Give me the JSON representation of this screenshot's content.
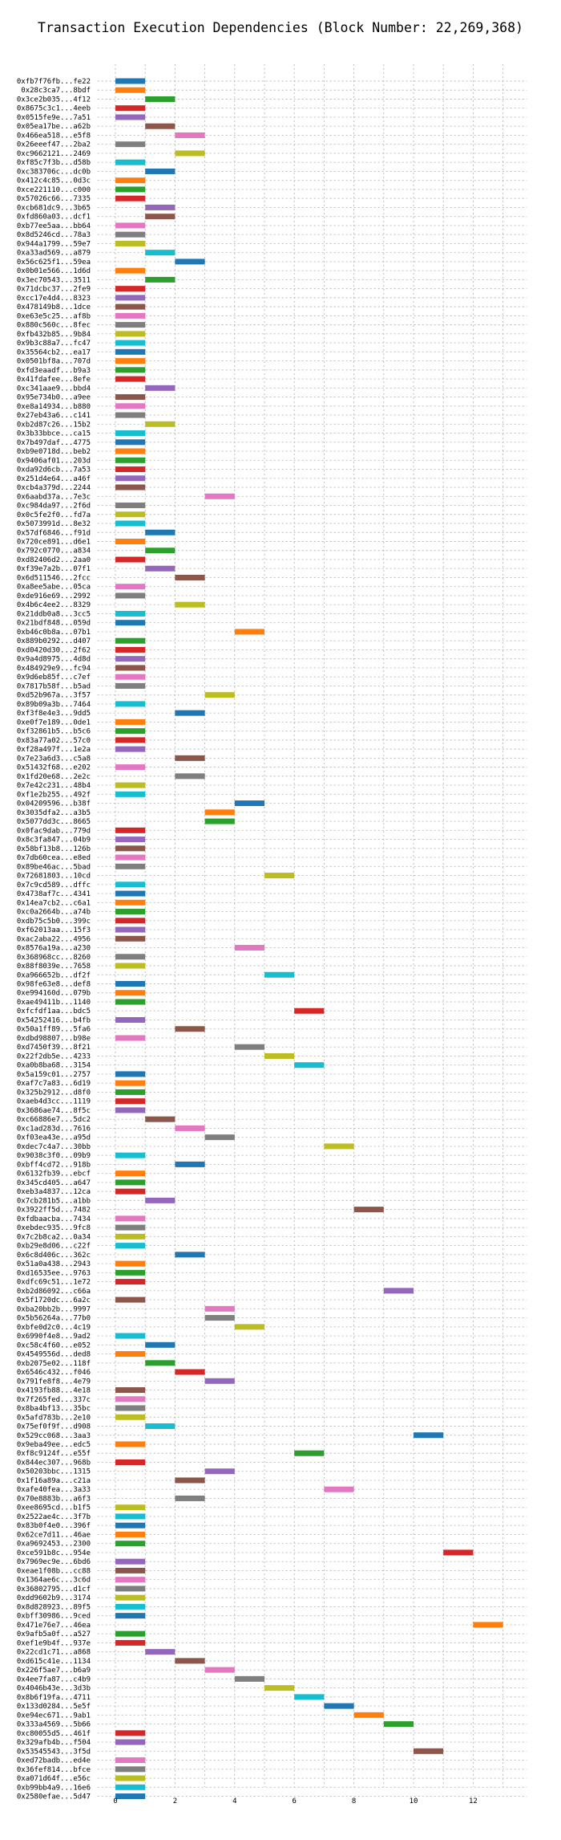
{
  "chart_data": {
    "type": "bar",
    "orientation": "horizontal-gantt",
    "title": "Transaction Execution Dependencies (Block Number: 22,269,368)",
    "xlabel": "",
    "ylabel": "",
    "xlim": [
      -0.6,
      13.8
    ],
    "xticks": [
      "0",
      "2",
      "4",
      "6",
      "8",
      "10",
      "12"
    ],
    "grid": true,
    "bar_length": 1,
    "colors": [
      "#1f77b4",
      "#ff7f0e",
      "#2ca02c",
      "#d62728",
      "#9467bd",
      "#8c564b",
      "#e377c2",
      "#7f7f7f",
      "#bcbd22",
      "#17becf"
    ],
    "transactions": [
      {
        "hash": "0xfb7f76fb...fe22",
        "start": 0,
        "color": "#1f77b4"
      },
      {
        "hash": "0x28c3ca7...8bdf",
        "start": 0,
        "color": "#ff7f0e"
      },
      {
        "hash": "0x3ce2b035...4f12",
        "start": 1,
        "color": "#2ca02c"
      },
      {
        "hash": "0x8675c3c1...4eeb",
        "start": 0,
        "color": "#d62728"
      },
      {
        "hash": "0x0515fe9e...7a51",
        "start": 0,
        "color": "#9467bd"
      },
      {
        "hash": "0x05ea17be...a62b",
        "start": 1,
        "color": "#8c564b"
      },
      {
        "hash": "0x466ea518...e5f8",
        "start": 2,
        "color": "#e377c2"
      },
      {
        "hash": "0x26eeef47...2ba2",
        "start": 0,
        "color": "#7f7f7f"
      },
      {
        "hash": "0xc9662121...2469",
        "start": 2,
        "color": "#bcbd22"
      },
      {
        "hash": "0xf85c7f3b...d58b",
        "start": 0,
        "color": "#17becf"
      },
      {
        "hash": "0xc383706c...dc0b",
        "start": 1,
        "color": "#1f77b4"
      },
      {
        "hash": "0x412c4c85...0d3c",
        "start": 0,
        "color": "#ff7f0e"
      },
      {
        "hash": "0xce221110...c000",
        "start": 0,
        "color": "#2ca02c"
      },
      {
        "hash": "0x57026c66...7335",
        "start": 0,
        "color": "#d62728"
      },
      {
        "hash": "0xcb681dc9...3b65",
        "start": 1,
        "color": "#9467bd"
      },
      {
        "hash": "0xfd860a03...dcf1",
        "start": 1,
        "color": "#8c564b"
      },
      {
        "hash": "0xb77ee5aa...bb64",
        "start": 0,
        "color": "#e377c2"
      },
      {
        "hash": "0x8d5246cd...78a3",
        "start": 0,
        "color": "#7f7f7f"
      },
      {
        "hash": "0x944a1799...59e7",
        "start": 0,
        "color": "#bcbd22"
      },
      {
        "hash": "0xa33ad569...a879",
        "start": 1,
        "color": "#17becf"
      },
      {
        "hash": "0x56c625f1...59ea",
        "start": 2,
        "color": "#1f77b4"
      },
      {
        "hash": "0x0b01e566...1d6d",
        "start": 0,
        "color": "#ff7f0e"
      },
      {
        "hash": "0x3ec70543...3511",
        "start": 1,
        "color": "#2ca02c"
      },
      {
        "hash": "0x71dcbc37...2fe9",
        "start": 0,
        "color": "#d62728"
      },
      {
        "hash": "0xcc17e4d4...8323",
        "start": 0,
        "color": "#9467bd"
      },
      {
        "hash": "0x478149b8...1dce",
        "start": 0,
        "color": "#8c564b"
      },
      {
        "hash": "0xe63e5c25...af8b",
        "start": 0,
        "color": "#e377c2"
      },
      {
        "hash": "0x880c560c...8fec",
        "start": 0,
        "color": "#7f7f7f"
      },
      {
        "hash": "0xfb432b85...9b84",
        "start": 0,
        "color": "#bcbd22"
      },
      {
        "hash": "0x9b3c88a7...fc47",
        "start": 0,
        "color": "#17becf"
      },
      {
        "hash": "0x35564cb2...ea17",
        "start": 0,
        "color": "#1f77b4"
      },
      {
        "hash": "0x0501bf8a...707d",
        "start": 0,
        "color": "#ff7f0e"
      },
      {
        "hash": "0xfd3eaadf...b9a3",
        "start": 0,
        "color": "#2ca02c"
      },
      {
        "hash": "0x41fdafee...8efe",
        "start": 0,
        "color": "#d62728"
      },
      {
        "hash": "0xc341aae9...bbd4",
        "start": 1,
        "color": "#9467bd"
      },
      {
        "hash": "0x95e734b0...a9ee",
        "start": 0,
        "color": "#8c564b"
      },
      {
        "hash": "0xe8a14934...b880",
        "start": 0,
        "color": "#e377c2"
      },
      {
        "hash": "0x27eb43a6...c141",
        "start": 0,
        "color": "#7f7f7f"
      },
      {
        "hash": "0xb2d87c26...15b2",
        "start": 1,
        "color": "#bcbd22"
      },
      {
        "hash": "0x3b33bbce...ca15",
        "start": 0,
        "color": "#17becf"
      },
      {
        "hash": "0x7b497daf...4775",
        "start": 0,
        "color": "#1f77b4"
      },
      {
        "hash": "0xb9e0718d...beb2",
        "start": 0,
        "color": "#ff7f0e"
      },
      {
        "hash": "0x9406af01...203d",
        "start": 0,
        "color": "#2ca02c"
      },
      {
        "hash": "0xda92d6cb...7a53",
        "start": 0,
        "color": "#d62728"
      },
      {
        "hash": "0x251d4e64...a46f",
        "start": 0,
        "color": "#9467bd"
      },
      {
        "hash": "0xcb4a379d...2244",
        "start": 0,
        "color": "#8c564b"
      },
      {
        "hash": "0x6aabd37a...7e3c",
        "start": 3,
        "color": "#e377c2"
      },
      {
        "hash": "0xc984da97...2f6d",
        "start": 0,
        "color": "#7f7f7f"
      },
      {
        "hash": "0x0c5fe2f0...fd7a",
        "start": 0,
        "color": "#bcbd22"
      },
      {
        "hash": "0x5073991d...8e32",
        "start": 0,
        "color": "#17becf"
      },
      {
        "hash": "0x57df6846...f91d",
        "start": 1,
        "color": "#1f77b4"
      },
      {
        "hash": "0x720ce891...d6e1",
        "start": 0,
        "color": "#ff7f0e"
      },
      {
        "hash": "0x792c0770...a834",
        "start": 1,
        "color": "#2ca02c"
      },
      {
        "hash": "0xd82406d2...2aa0",
        "start": 0,
        "color": "#d62728"
      },
      {
        "hash": "0xf39e7a2b...07f1",
        "start": 1,
        "color": "#9467bd"
      },
      {
        "hash": "0x6d511546...2fcc",
        "start": 2,
        "color": "#8c564b"
      },
      {
        "hash": "0xa8ee5abe...05ca",
        "start": 0,
        "color": "#e377c2"
      },
      {
        "hash": "0xde916e69...2992",
        "start": 0,
        "color": "#7f7f7f"
      },
      {
        "hash": "0x4b6c4ee2...8329",
        "start": 2,
        "color": "#bcbd22"
      },
      {
        "hash": "0x21ddb0a8...3cc5",
        "start": 0,
        "color": "#17becf"
      },
      {
        "hash": "0x21bdf848...059d",
        "start": 0,
        "color": "#1f77b4"
      },
      {
        "hash": "0xb46c0b8a...07b1",
        "start": 4,
        "color": "#ff7f0e"
      },
      {
        "hash": "0x889b0292...d407",
        "start": 0,
        "color": "#2ca02c"
      },
      {
        "hash": "0xd0420d30...2f62",
        "start": 0,
        "color": "#d62728"
      },
      {
        "hash": "0x9a4d8975...4d8d",
        "start": 0,
        "color": "#9467bd"
      },
      {
        "hash": "0x484929e9...fc94",
        "start": 0,
        "color": "#8c564b"
      },
      {
        "hash": "0x9d6eb85f...c7ef",
        "start": 0,
        "color": "#e377c2"
      },
      {
        "hash": "0x7817b58f...b5ad",
        "start": 0,
        "color": "#7f7f7f"
      },
      {
        "hash": "0xd52b967a...3f57",
        "start": 3,
        "color": "#bcbd22"
      },
      {
        "hash": "0x89b09a3b...7464",
        "start": 0,
        "color": "#17becf"
      },
      {
        "hash": "0xf3f8e4e3...9dd5",
        "start": 2,
        "color": "#1f77b4"
      },
      {
        "hash": "0xe0f7e189...0de1",
        "start": 0,
        "color": "#ff7f0e"
      },
      {
        "hash": "0xf32861b5...b5c6",
        "start": 0,
        "color": "#2ca02c"
      },
      {
        "hash": "0x83a77a02...57c0",
        "start": 0,
        "color": "#d62728"
      },
      {
        "hash": "0xf28a497f...1e2a",
        "start": 0,
        "color": "#9467bd"
      },
      {
        "hash": "0x7e23a6d3...c5a8",
        "start": 2,
        "color": "#8c564b"
      },
      {
        "hash": "0x51432f68...e202",
        "start": 0,
        "color": "#e377c2"
      },
      {
        "hash": "0x1fd20e68...2e2c",
        "start": 2,
        "color": "#7f7f7f"
      },
      {
        "hash": "0x7e42c231...48b4",
        "start": 0,
        "color": "#bcbd22"
      },
      {
        "hash": "0xf1e2b255...492f",
        "start": 0,
        "color": "#17becf"
      },
      {
        "hash": "0x04209596...b38f",
        "start": 4,
        "color": "#1f77b4"
      },
      {
        "hash": "0x3035dfa2...a3b5",
        "start": 3,
        "color": "#ff7f0e"
      },
      {
        "hash": "0x5077dd3c...8665",
        "start": 3,
        "color": "#2ca02c"
      },
      {
        "hash": "0x0fac9dab...779d",
        "start": 0,
        "color": "#d62728"
      },
      {
        "hash": "0x8c3fa847...04b9",
        "start": 0,
        "color": "#9467bd"
      },
      {
        "hash": "0x58bf13b8...126b",
        "start": 0,
        "color": "#8c564b"
      },
      {
        "hash": "0x7db60cea...e8ed",
        "start": 0,
        "color": "#e377c2"
      },
      {
        "hash": "0x89be46ac...5bad",
        "start": 0,
        "color": "#7f7f7f"
      },
      {
        "hash": "0x72681803...10cd",
        "start": 5,
        "color": "#bcbd22"
      },
      {
        "hash": "0x7c9cd589...dffc",
        "start": 0,
        "color": "#17becf"
      },
      {
        "hash": "0x4738af7c...4341",
        "start": 0,
        "color": "#1f77b4"
      },
      {
        "hash": "0x14ea7cb2...c6a1",
        "start": 0,
        "color": "#ff7f0e"
      },
      {
        "hash": "0xc0a2664b...a74b",
        "start": 0,
        "color": "#2ca02c"
      },
      {
        "hash": "0xdb75c5b0...399c",
        "start": 0,
        "color": "#d62728"
      },
      {
        "hash": "0xf62013aa...15f3",
        "start": 0,
        "color": "#9467bd"
      },
      {
        "hash": "0xac2aba22...4956",
        "start": 0,
        "color": "#8c564b"
      },
      {
        "hash": "0x8576a19a...a230",
        "start": 4,
        "color": "#e377c2"
      },
      {
        "hash": "0x368968cc...8260",
        "start": 0,
        "color": "#7f7f7f"
      },
      {
        "hash": "0x88f8039e...7658",
        "start": 0,
        "color": "#bcbd22"
      },
      {
        "hash": "0xa966652b...df2f",
        "start": 5,
        "color": "#17becf"
      },
      {
        "hash": "0x98fe63e8...def8",
        "start": 0,
        "color": "#1f77b4"
      },
      {
        "hash": "0xe994160d...079b",
        "start": 0,
        "color": "#ff7f0e"
      },
      {
        "hash": "0xae49411b...1140",
        "start": 0,
        "color": "#2ca02c"
      },
      {
        "hash": "0xfcfdf1aa...bdc5",
        "start": 6,
        "color": "#d62728"
      },
      {
        "hash": "0x54252416...b4fb",
        "start": 0,
        "color": "#9467bd"
      },
      {
        "hash": "0x50a1ff89...5fa6",
        "start": 2,
        "color": "#8c564b"
      },
      {
        "hash": "0xdbd98807...b98e",
        "start": 0,
        "color": "#e377c2"
      },
      {
        "hash": "0xd7450f39...8f21",
        "start": 4,
        "color": "#7f7f7f"
      },
      {
        "hash": "0x22f2db5e...4233",
        "start": 5,
        "color": "#bcbd22"
      },
      {
        "hash": "0xa0b8ba68...3154",
        "start": 6,
        "color": "#17becf"
      },
      {
        "hash": "0x5a159c01...2757",
        "start": 0,
        "color": "#1f77b4"
      },
      {
        "hash": "0xaf7c7a83...6d19",
        "start": 0,
        "color": "#ff7f0e"
      },
      {
        "hash": "0x325b2912...d8f0",
        "start": 0,
        "color": "#2ca02c"
      },
      {
        "hash": "0xaeb4d3cc...1119",
        "start": 0,
        "color": "#d62728"
      },
      {
        "hash": "0x3686ae74...8f5c",
        "start": 0,
        "color": "#9467bd"
      },
      {
        "hash": "0xc66886e7...5dc2",
        "start": 1,
        "color": "#8c564b"
      },
      {
        "hash": "0xc1ad283d...7616",
        "start": 2,
        "color": "#e377c2"
      },
      {
        "hash": "0xf03ea43e...a95d",
        "start": 3,
        "color": "#7f7f7f"
      },
      {
        "hash": "0xdec7c4a7...30bb",
        "start": 7,
        "color": "#bcbd22"
      },
      {
        "hash": "0x9038c3f0...09b9",
        "start": 0,
        "color": "#17becf"
      },
      {
        "hash": "0xbff4cd72...918b",
        "start": 2,
        "color": "#1f77b4"
      },
      {
        "hash": "0x6132fb39...ebcf",
        "start": 0,
        "color": "#ff7f0e"
      },
      {
        "hash": "0x345cd405...a647",
        "start": 0,
        "color": "#2ca02c"
      },
      {
        "hash": "0xeb3a4837...12ca",
        "start": 0,
        "color": "#d62728"
      },
      {
        "hash": "0x7cb281b5...a1bb",
        "start": 1,
        "color": "#9467bd"
      },
      {
        "hash": "0x3922ff5d...7482",
        "start": 8,
        "color": "#8c564b"
      },
      {
        "hash": "0xfdbaacba...7434",
        "start": 0,
        "color": "#e377c2"
      },
      {
        "hash": "0xebdec935...9fc8",
        "start": 0,
        "color": "#7f7f7f"
      },
      {
        "hash": "0x7c2b8ca2...0a34",
        "start": 0,
        "color": "#bcbd22"
      },
      {
        "hash": "0xb29e8d06...c22f",
        "start": 0,
        "color": "#17becf"
      },
      {
        "hash": "0x6c8d406c...362c",
        "start": 2,
        "color": "#1f77b4"
      },
      {
        "hash": "0x51a0a438...2943",
        "start": 0,
        "color": "#ff7f0e"
      },
      {
        "hash": "0xd16535ee...9763",
        "start": 0,
        "color": "#2ca02c"
      },
      {
        "hash": "0xdfc69c51...1e72",
        "start": 0,
        "color": "#d62728"
      },
      {
        "hash": "0xb2d86092...c66a",
        "start": 9,
        "color": "#9467bd"
      },
      {
        "hash": "0x5f1720dc...6a2c",
        "start": 0,
        "color": "#8c564b"
      },
      {
        "hash": "0xba20bb2b...9997",
        "start": 3,
        "color": "#e377c2"
      },
      {
        "hash": "0x5b56264a...77b0",
        "start": 3,
        "color": "#7f7f7f"
      },
      {
        "hash": "0xbfe0d2c0...4c19",
        "start": 4,
        "color": "#bcbd22"
      },
      {
        "hash": "0x6990f4e8...9ad2",
        "start": 0,
        "color": "#17becf"
      },
      {
        "hash": "0xc58c4f60...e052",
        "start": 1,
        "color": "#1f77b4"
      },
      {
        "hash": "0x4549556d...ded8",
        "start": 0,
        "color": "#ff7f0e"
      },
      {
        "hash": "0xb2075e02...118f",
        "start": 1,
        "color": "#2ca02c"
      },
      {
        "hash": "0x6546c432...f046",
        "start": 2,
        "color": "#d62728"
      },
      {
        "hash": "0x791fe8f8...4e79",
        "start": 3,
        "color": "#9467bd"
      },
      {
        "hash": "0x4193fb88...4e18",
        "start": 0,
        "color": "#8c564b"
      },
      {
        "hash": "0x7f265fed...337c",
        "start": 0,
        "color": "#e377c2"
      },
      {
        "hash": "0x8ba4bf13...35bc",
        "start": 0,
        "color": "#7f7f7f"
      },
      {
        "hash": "0x5afd783b...2e10",
        "start": 0,
        "color": "#bcbd22"
      },
      {
        "hash": "0x75ef0f9f...d908",
        "start": 1,
        "color": "#17becf"
      },
      {
        "hash": "0x529cc068...3aa3",
        "start": 10,
        "color": "#1f77b4"
      },
      {
        "hash": "0x9eba49ee...edc5",
        "start": 0,
        "color": "#ff7f0e"
      },
      {
        "hash": "0xf8c9124f...e55f",
        "start": 6,
        "color": "#2ca02c"
      },
      {
        "hash": "0x844ec307...968b",
        "start": 0,
        "color": "#d62728"
      },
      {
        "hash": "0x50203bbc...1315",
        "start": 3,
        "color": "#9467bd"
      },
      {
        "hash": "0x1f16a89a...c21a",
        "start": 2,
        "color": "#8c564b"
      },
      {
        "hash": "0xafe40fea...3a33",
        "start": 7,
        "color": "#e377c2"
      },
      {
        "hash": "0x70e8883b...a6f3",
        "start": 2,
        "color": "#7f7f7f"
      },
      {
        "hash": "0xee8695cd...b1f5",
        "start": 0,
        "color": "#bcbd22"
      },
      {
        "hash": "0x2522ae4c...3f7b",
        "start": 0,
        "color": "#17becf"
      },
      {
        "hash": "0x83b0f4e0...396f",
        "start": 0,
        "color": "#1f77b4"
      },
      {
        "hash": "0x62ce7d11...46ae",
        "start": 0,
        "color": "#ff7f0e"
      },
      {
        "hash": "0xa9692453...2300",
        "start": 0,
        "color": "#2ca02c"
      },
      {
        "hash": "0xce591b8c...954e",
        "start": 11,
        "color": "#d62728"
      },
      {
        "hash": "0x7969ec9e...6bd6",
        "start": 0,
        "color": "#9467bd"
      },
      {
        "hash": "0xeae1f08b...cc88",
        "start": 0,
        "color": "#8c564b"
      },
      {
        "hash": "0x1364ae6c...3c6d",
        "start": 0,
        "color": "#e377c2"
      },
      {
        "hash": "0x36802795...d1cf",
        "start": 0,
        "color": "#7f7f7f"
      },
      {
        "hash": "0xdd9602b9...3174",
        "start": 0,
        "color": "#bcbd22"
      },
      {
        "hash": "0x8d828923...89f5",
        "start": 0,
        "color": "#17becf"
      },
      {
        "hash": "0xbff30986...9ced",
        "start": 0,
        "color": "#1f77b4"
      },
      {
        "hash": "0x471e76e7...46ea",
        "start": 12,
        "color": "#ff7f0e"
      },
      {
        "hash": "0x9afb5a0f...a527",
        "start": 0,
        "color": "#2ca02c"
      },
      {
        "hash": "0xef1e9b4f...937e",
        "start": 0,
        "color": "#d62728"
      },
      {
        "hash": "0x22cd1c71...a868",
        "start": 1,
        "color": "#9467bd"
      },
      {
        "hash": "0xd615c41e...1134",
        "start": 2,
        "color": "#8c564b"
      },
      {
        "hash": "0x226f5ae7...b6a9",
        "start": 3,
        "color": "#e377c2"
      },
      {
        "hash": "0x4ee7fa87...c4b9",
        "start": 4,
        "color": "#7f7f7f"
      },
      {
        "hash": "0x4046b43e...3d3b",
        "start": 5,
        "color": "#bcbd22"
      },
      {
        "hash": "0x8b6f19fa...4711",
        "start": 6,
        "color": "#17becf"
      },
      {
        "hash": "0x133d0284...5e5f",
        "start": 7,
        "color": "#1f77b4"
      },
      {
        "hash": "0xe94ec671...9ab1",
        "start": 8,
        "color": "#ff7f0e"
      },
      {
        "hash": "0x333a4569...5b66",
        "start": 9,
        "color": "#2ca02c"
      },
      {
        "hash": "0xc80055d5...461f",
        "start": 0,
        "color": "#d62728"
      },
      {
        "hash": "0x329afb4b...f504",
        "start": 0,
        "color": "#9467bd"
      },
      {
        "hash": "0x53545543...3f5d",
        "start": 10,
        "color": "#8c564b"
      },
      {
        "hash": "0xed72badb...ed4e",
        "start": 0,
        "color": "#e377c2"
      },
      {
        "hash": "0x36fef814...bfce",
        "start": 0,
        "color": "#7f7f7f"
      },
      {
        "hash": "0xa071d64f...e56c",
        "start": 0,
        "color": "#bcbd22"
      },
      {
        "hash": "0xb99bb4a9...16e6",
        "start": 0,
        "color": "#17becf"
      },
      {
        "hash": "0x2580efae...5d47",
        "start": 0,
        "color": "#1f77b4"
      }
    ]
  }
}
